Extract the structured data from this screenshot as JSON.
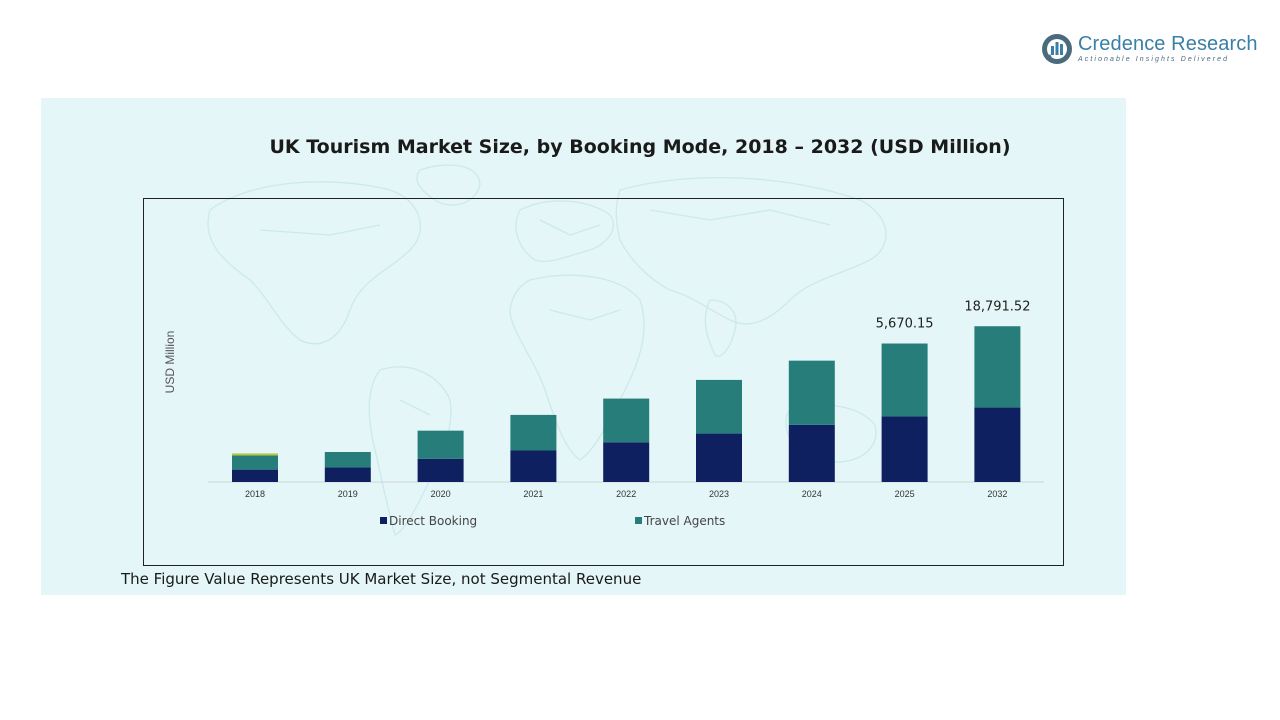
{
  "logo": {
    "name": "Credence Research",
    "tagline": "Actionable Insights Delivered"
  },
  "footnote": "The Figure Value Represents UK Market Size, not Segmental Revenue",
  "colors": {
    "panel_bg": "#e4f6f7",
    "direct_booking": "#0e2060",
    "travel_agents": "#267d7a",
    "accent_strip": "#b8c83a"
  },
  "chart_data": {
    "type": "bar",
    "stacked": true,
    "title": "UK Tourism Market Size, by Booking Mode, 2018 – 2032 (USD Million)",
    "xlabel": "",
    "ylabel": "USD Million",
    "categories": [
      "2018",
      "2019",
      "2020",
      "2021",
      "2022",
      "2023",
      "2024",
      "2025",
      "2032"
    ],
    "series": [
      {
        "name": "Direct Booking",
        "color": "#0e2060",
        "values": [
          1060,
          1240,
          1990,
          2700,
          3400,
          4150,
          4900,
          5620,
          6380
        ]
      },
      {
        "name": "Travel Agents",
        "color": "#267d7a",
        "values": [
          1220,
          1330,
          2410,
          3050,
          3750,
          4600,
          5500,
          6250,
          6970
        ]
      }
    ],
    "data_labels": [
      {
        "category": "2025",
        "text": "5,670.15"
      },
      {
        "category": "2032",
        "text": "18,791.52"
      }
    ],
    "ylim": [
      0,
      18000
    ],
    "grid": false,
    "legend": "bottom"
  }
}
